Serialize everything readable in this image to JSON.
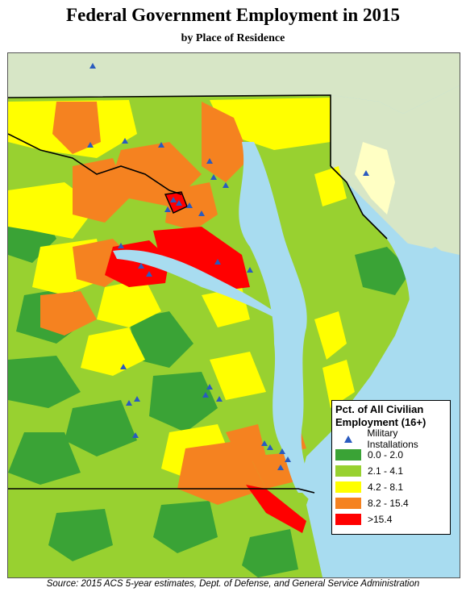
{
  "title": "Federal Government Employment in 2015",
  "subtitle": "by Place of Residence",
  "legend": {
    "title_line1": "Pct. of All Civilian",
    "title_line2": "Employment (16+)",
    "military_label": "Military Installations",
    "military_color": "#2a5bbf",
    "classes": [
      {
        "label": "0.0 - 2.0",
        "color": "#3aa336"
      },
      {
        "label": "2.1 - 4.1",
        "color": "#98d130"
      },
      {
        "label": "4.2 - 8.1",
        "color": "#ffff00"
      },
      {
        "label": "8.2 - 15.4",
        "color": "#f58220"
      },
      {
        "label": ">15.4",
        "color": "#ff0000"
      }
    ]
  },
  "colors": {
    "water": "#a8dcf0",
    "outside": "#d7e6c6",
    "state_border": "#000000"
  },
  "source": "Source: 2015 ACS 5-year estimates, Dept. of Defense, and General Service Administration"
}
